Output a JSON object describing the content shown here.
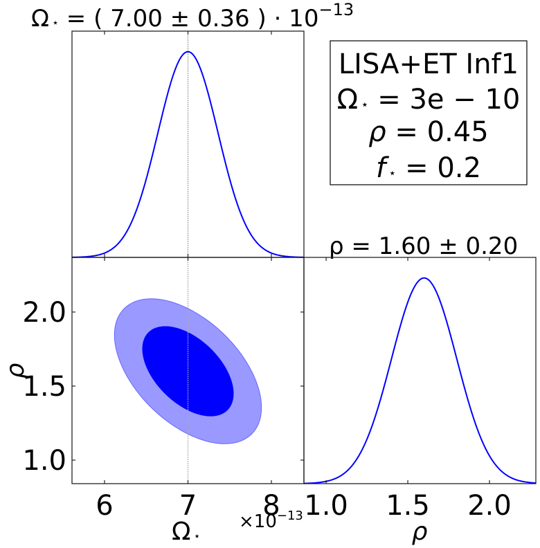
{
  "chart_data": [
    {
      "type": "line",
      "panel": "marginal-omega",
      "title": "Ω⋆ = ( 7.00 ± 0.36 ) · 10^−13",
      "title_parts": {
        "main": "Ω",
        "sub": "⋆",
        "eq": " = ( 7.00 ± 0.36 ) · 10",
        "exp": "−13"
      },
      "distribution": {
        "mean": 7.0,
        "sigma": 0.36,
        "unit_scale": "1e-13"
      },
      "xlim": [
        5.61,
        8.39
      ],
      "truth_line": 7.0,
      "color": "#0000ff"
    },
    {
      "type": "contour",
      "panel": "joint-omega-rho",
      "x": {
        "label": "Ω⋆",
        "label_main": "Ω",
        "label_sub": "⋆",
        "ticks": [
          6,
          7,
          8
        ],
        "tick_labels": [
          "6",
          "7",
          "8"
        ],
        "offset_text": "×10",
        "offset_exp": "−13",
        "lim": [
          5.61,
          8.39
        ]
      },
      "y": {
        "label": "ρ",
        "ticks": [
          1.0,
          1.5,
          2.0
        ],
        "tick_labels": [
          "1.0",
          "1.5",
          "2.0"
        ],
        "lim": [
          0.841,
          2.369
        ]
      },
      "mean": [
        7.0,
        1.6
      ],
      "sigma": [
        0.36,
        0.2
      ],
      "correlation": -0.5,
      "levels": [
        {
          "name": "68%",
          "color": "#0000ff"
        },
        {
          "name": "95%",
          "color": "#9999ff"
        }
      ],
      "truth_line_x": 7.0
    },
    {
      "type": "line",
      "panel": "marginal-rho",
      "title": "ρ = 1.60 ± 0.20",
      "distribution": {
        "mean": 1.6,
        "sigma": 0.2
      },
      "x": {
        "label": "ρ",
        "ticks": [
          1.0,
          1.5,
          2.0
        ],
        "tick_labels": [
          "1.0",
          "1.5",
          "2.0"
        ],
        "lim": [
          0.864,
          2.284
        ]
      },
      "color": "#0000ff"
    }
  ],
  "legend": {
    "placement": "top-right",
    "lines": [
      {
        "text": "LISA+ET Inf1"
      },
      {
        "main": "Ω",
        "sub": "⋆",
        "rest": " = 3e − 10"
      },
      {
        "main": "ρ",
        "sub": "",
        "rest": " = 0.45"
      },
      {
        "main": "f",
        "sub": "⋆",
        "rest": " = 0.2"
      }
    ]
  }
}
